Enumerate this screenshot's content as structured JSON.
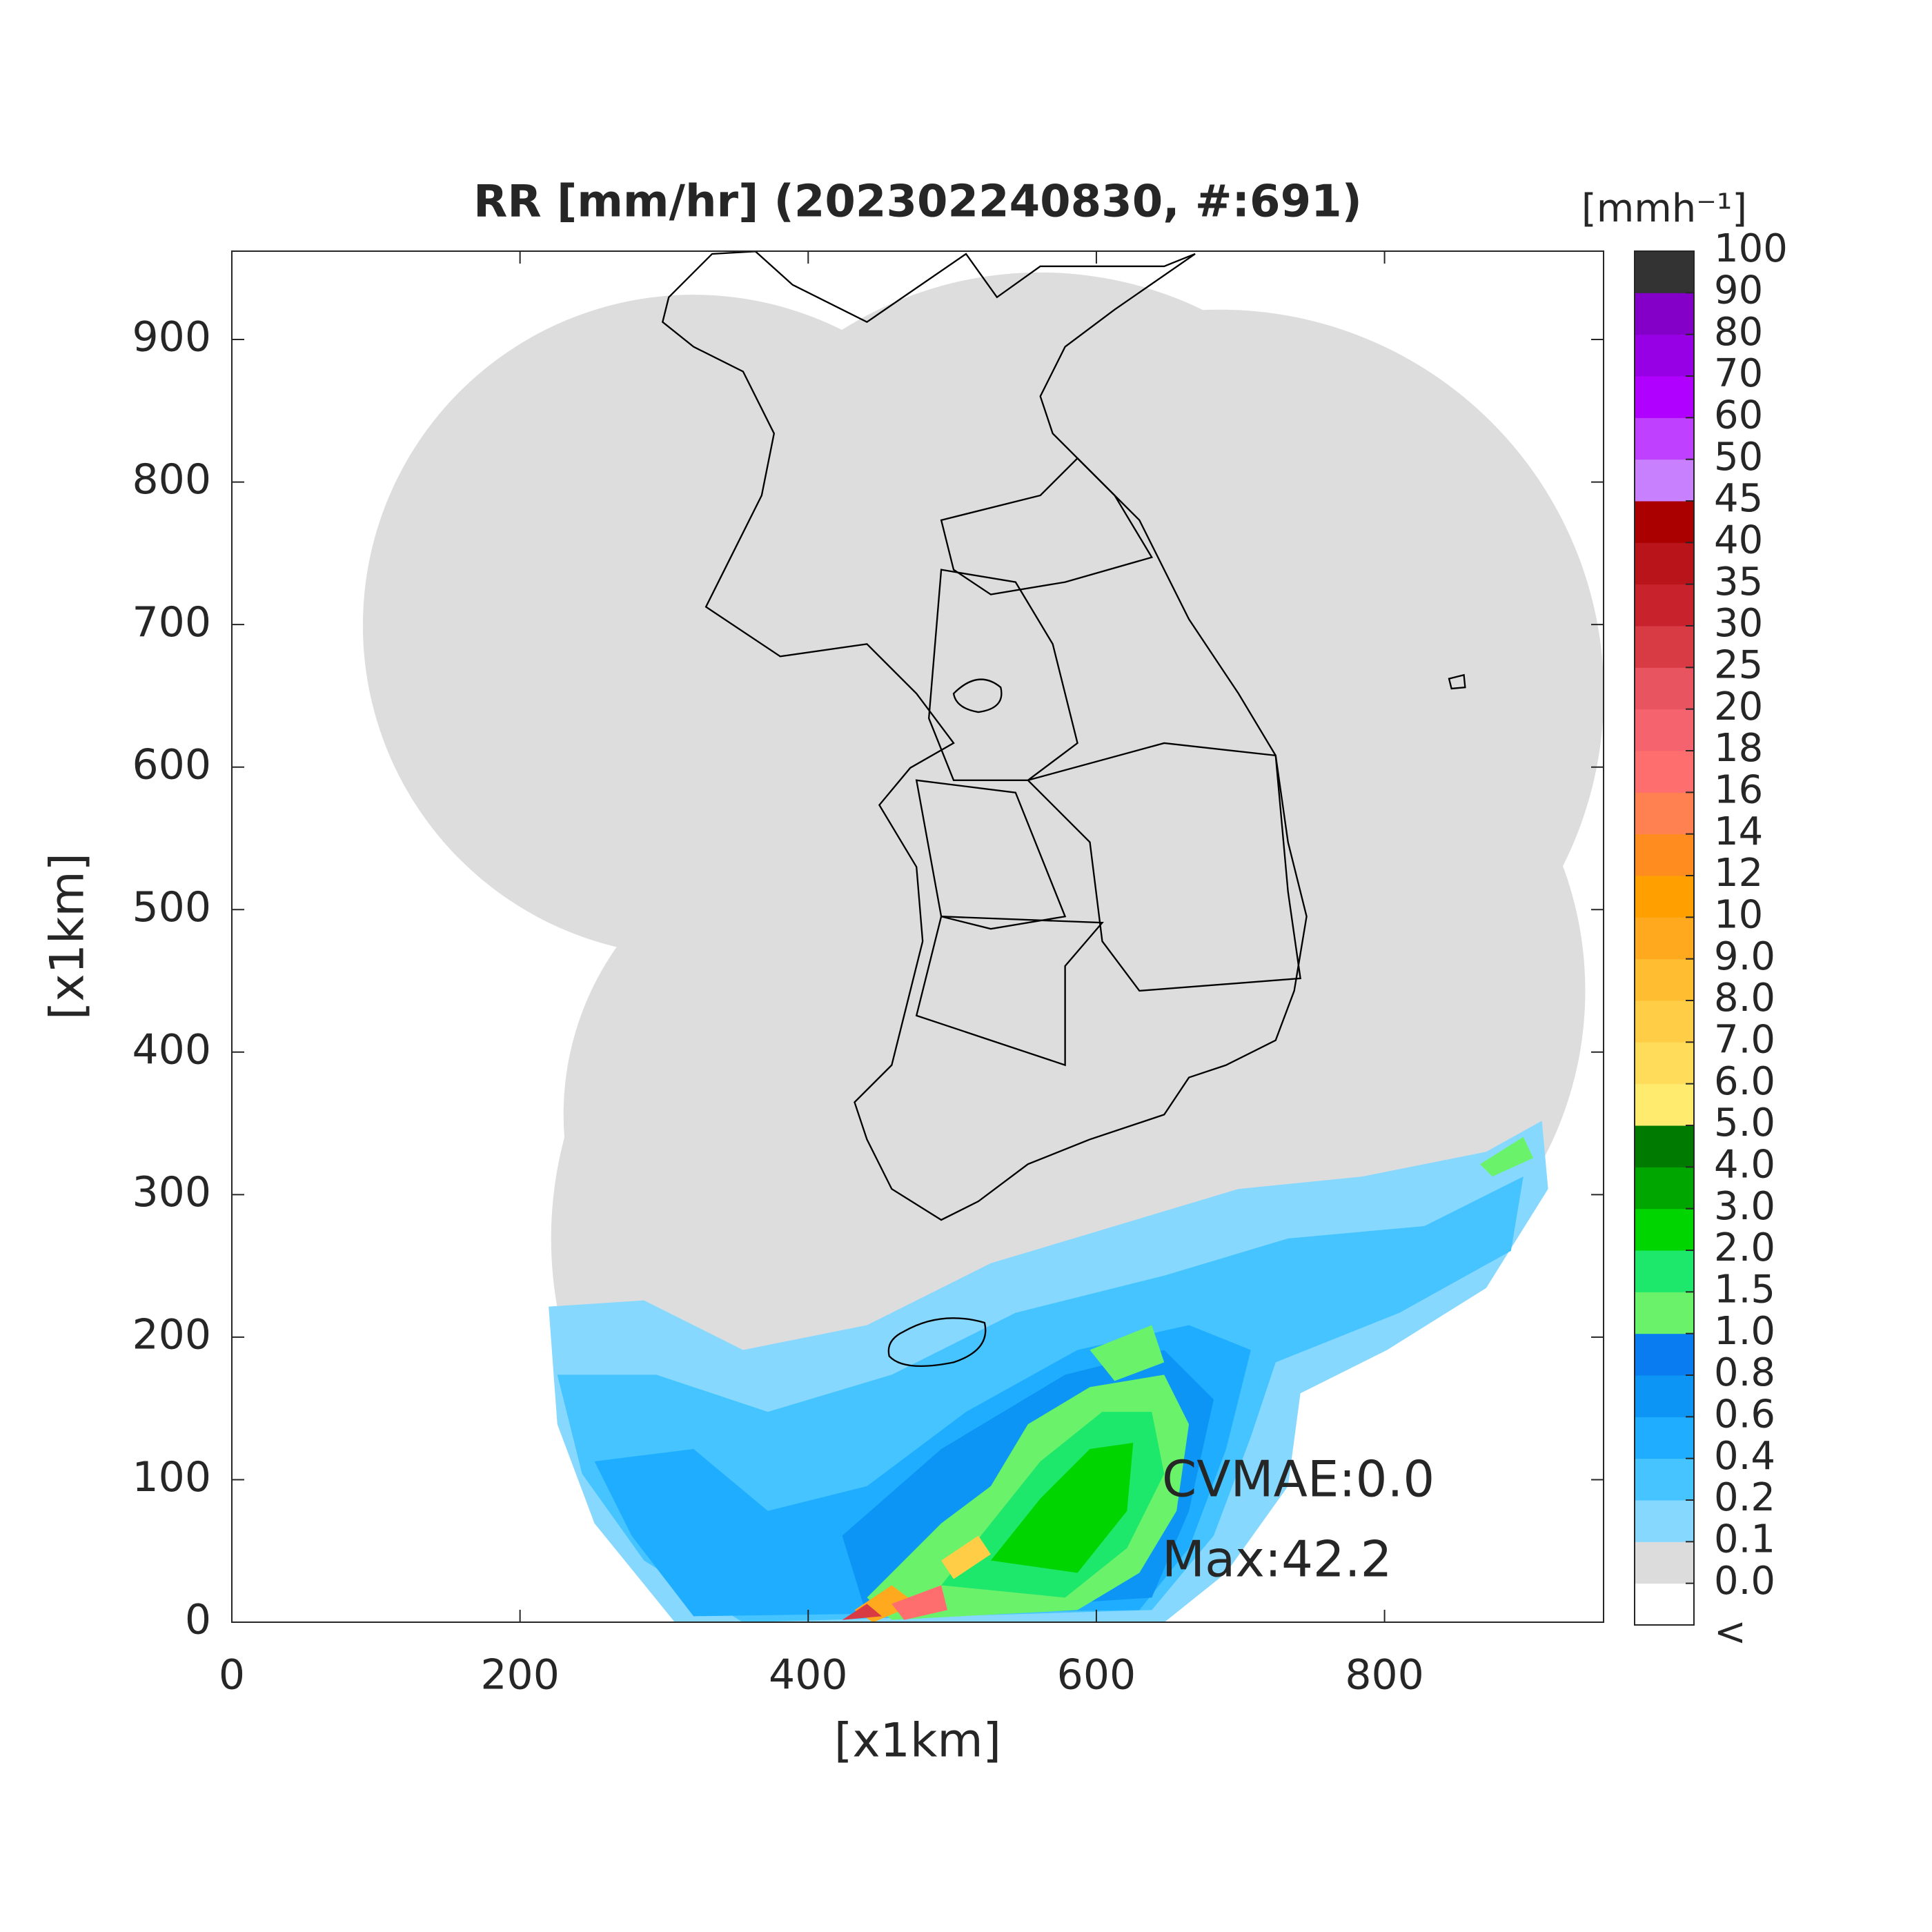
{
  "chart_data": {
    "type": "map",
    "title": "RR [mm/hr] (202302240830, #:691)",
    "x_label": "[x1km]",
    "y_label": "[x1km]",
    "xlim": [
      0,
      952
    ],
    "ylim": [
      0,
      962
    ],
    "xticks": [
      0,
      200,
      400,
      600,
      800
    ],
    "yticks": [
      0,
      100,
      200,
      300,
      400,
      500,
      600,
      700,
      800,
      900
    ],
    "annotations": [
      "CVMAE:0.0",
      "Max:42.2"
    ],
    "colorbar": {
      "label": "[mmh⁻¹]",
      "under_label": "<",
      "ticks": [
        {
          "value": 0,
          "label": "0.0"
        },
        0.1,
        0.2,
        0.4,
        0.6,
        0.8,
        {
          "value": 1,
          "label": "1.0"
        },
        1.5,
        {
          "value": 2,
          "label": "2.0"
        },
        {
          "value": 3,
          "label": "3.0"
        },
        {
          "value": 4,
          "label": "4.0"
        },
        {
          "value": 5,
          "label": "5.0"
        },
        {
          "value": 6,
          "label": "6.0"
        },
        {
          "value": 7,
          "label": "7.0"
        },
        {
          "value": 8,
          "label": "8.0"
        },
        {
          "value": 9,
          "label": "9.0"
        },
        10,
        12,
        14,
        16,
        18,
        20,
        25,
        30,
        35,
        40,
        45,
        50,
        60,
        70,
        80,
        90,
        100
      ],
      "colors": [
        "#ffffff",
        "#dcdcdc",
        "#87d8ff",
        "#45c4ff",
        "#1eadff",
        "#0c95f5",
        "#087cf0",
        "#6bf26b",
        "#1ee86b",
        "#00d500",
        "#00a600",
        "#007a00",
        "#ffec6e",
        "#ffdc5a",
        "#ffcd46",
        "#ffbe32",
        "#ffaa1e",
        "#ffa000",
        "#ff8c1e",
        "#ff8050",
        "#ff6e6e",
        "#f5646e",
        "#e85560",
        "#d93b45",
        "#c8232d",
        "#b91419",
        "#aa0000",
        "#c880ff",
        "#c040ff",
        "#b000ff",
        "#9700e5",
        "#8400c8",
        "#333333"
      ]
    }
  }
}
